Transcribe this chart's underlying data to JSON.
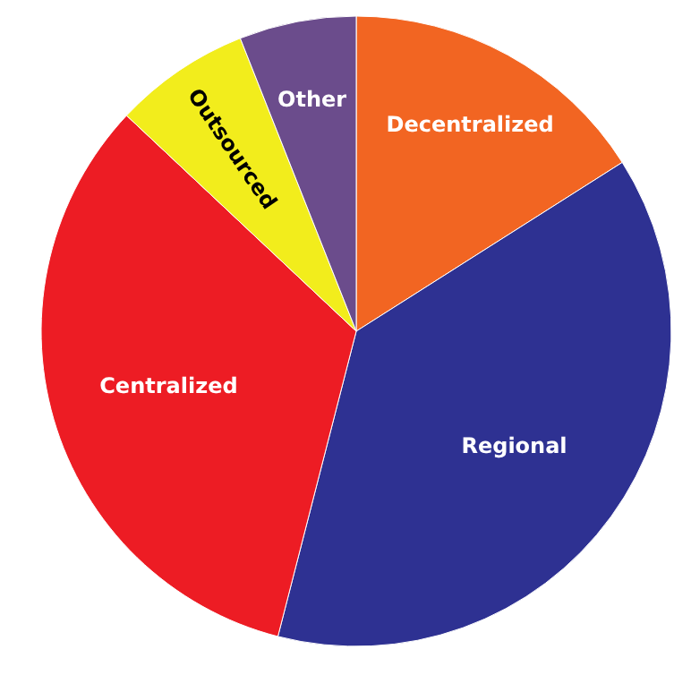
{
  "chart_data": {
    "type": "pie",
    "categories": [
      "Decentralized",
      "Regional",
      "Centralized",
      "Outsourced",
      "Other"
    ],
    "values": [
      16,
      38,
      33,
      7,
      6
    ],
    "colors": [
      "#f26522",
      "#2e3192",
      "#ed1c24",
      "#f2ed1c",
      "#6b4c8c"
    ]
  }
}
